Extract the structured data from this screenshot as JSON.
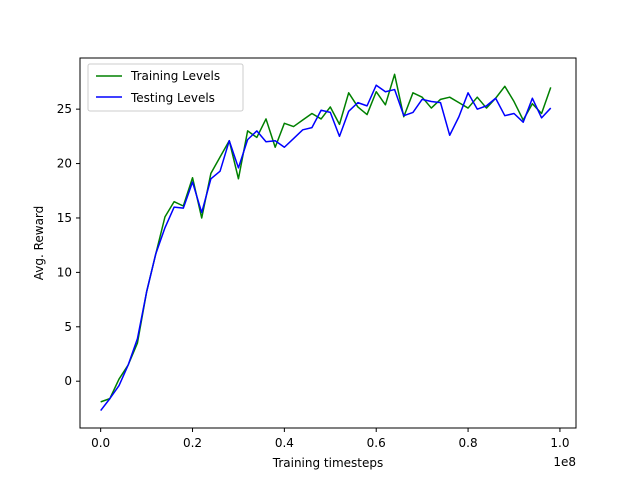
{
  "chart_data": {
    "type": "line",
    "xlabel": "Training timesteps",
    "ylabel": "Avg. Reward",
    "x_offset_label": "1e8",
    "xlim": [
      -0.045,
      1.035
    ],
    "ylim": [
      -4.3,
      29.7
    ],
    "xticks": [
      0.0,
      0.2,
      0.4,
      0.6,
      0.8,
      1.0
    ],
    "xtick_labels": [
      "0.0",
      "0.2",
      "0.4",
      "0.6",
      "0.8",
      "1.0"
    ],
    "yticks": [
      0,
      5,
      10,
      15,
      20,
      25
    ],
    "ytick_labels": [
      "0",
      "5",
      "10",
      "15",
      "20",
      "25"
    ],
    "grid": false,
    "legend": "top-left",
    "x": [
      0.0,
      0.02,
      0.04,
      0.06,
      0.08,
      0.1,
      0.12,
      0.14,
      0.16,
      0.18,
      0.2,
      0.22,
      0.24,
      0.26,
      0.28,
      0.3,
      0.32,
      0.34,
      0.36,
      0.38,
      0.4,
      0.42,
      0.44,
      0.46,
      0.48,
      0.5,
      0.52,
      0.54,
      0.56,
      0.58,
      0.6,
      0.62,
      0.64,
      0.66,
      0.68,
      0.7,
      0.72,
      0.74,
      0.76,
      0.78,
      0.8,
      0.82,
      0.84,
      0.86,
      0.88,
      0.9,
      0.92,
      0.94,
      0.96,
      0.98
    ],
    "series": [
      {
        "name": "Training Levels",
        "color": "#008000",
        "values": [
          -1.9,
          -1.6,
          0.2,
          1.5,
          3.5,
          8.2,
          11.7,
          15.1,
          16.5,
          16.1,
          18.7,
          15.0,
          19.1,
          20.6,
          22.1,
          18.6,
          23.0,
          22.4,
          24.1,
          21.5,
          23.7,
          23.4,
          24.0,
          24.6,
          24.1,
          25.2,
          23.6,
          26.5,
          25.2,
          24.5,
          26.6,
          25.4,
          28.2,
          24.3,
          26.5,
          26.1,
          25.1,
          25.9,
          26.1,
          25.6,
          25.1,
          26.1,
          25.1,
          26.0,
          27.1,
          25.7,
          24.0,
          25.5,
          24.6,
          27.0
        ]
      },
      {
        "name": "Testing Levels",
        "color": "#0000ff",
        "values": [
          -2.7,
          -1.6,
          -0.4,
          1.5,
          3.9,
          8.2,
          11.7,
          14.1,
          16.0,
          15.9,
          18.3,
          15.5,
          18.6,
          19.3,
          22.1,
          19.6,
          22.2,
          23.0,
          22.0,
          22.1,
          21.5,
          22.3,
          23.1,
          23.3,
          24.9,
          24.7,
          22.5,
          24.8,
          25.6,
          25.3,
          27.2,
          26.6,
          26.8,
          24.4,
          24.7,
          25.9,
          25.7,
          25.6,
          22.6,
          24.3,
          26.5,
          25.0,
          25.3,
          26.0,
          24.4,
          24.6,
          23.8,
          26.0,
          24.2,
          25.1
        ]
      }
    ]
  }
}
